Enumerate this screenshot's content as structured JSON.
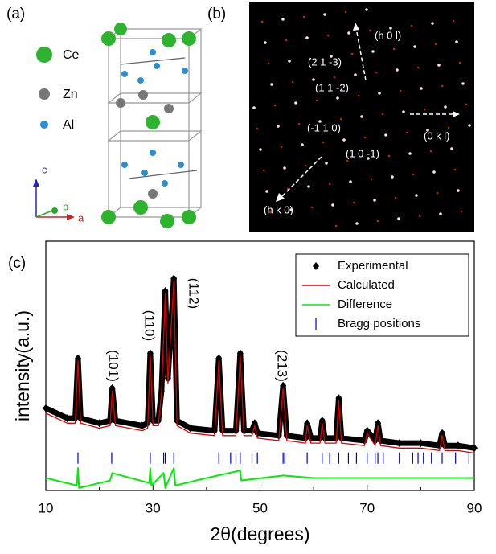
{
  "panel_a": {
    "label": "(a)",
    "legend": [
      "Ce",
      "Zn",
      "Al"
    ],
    "axes": [
      "c",
      "b",
      "a"
    ]
  },
  "panel_b": {
    "label": "(b)",
    "annotations": [
      "(h 0 l)",
      "(2 1 -3)",
      "(1 1 -2)",
      "(0 k l)",
      "(-1 1 0)",
      "(1 0 -1)",
      "(h k 0)"
    ]
  },
  "chart_data": {
    "type": "line",
    "panel_label": "(c)",
    "xlabel": "2θ(degrees)",
    "ylabel": "intensity(a.u.)",
    "xlim": [
      10,
      90
    ],
    "ylim": [
      0,
      100
    ],
    "xticks": [
      10,
      30,
      50,
      70,
      90
    ],
    "xminorticks": [
      20,
      40,
      60,
      80
    ],
    "legend": "upper right",
    "annotations": [
      "(101)",
      "(110)",
      "(112)",
      "(213)"
    ],
    "series": [
      {
        "name": "Experimental",
        "color": "#000000",
        "marker": "diamond",
        "x": [
          10,
          14,
          15.5,
          16,
          16.5,
          20,
          22,
          22.4,
          23,
          28,
          29,
          29.5,
          30,
          31,
          31.6,
          32.3,
          32.8,
          33.9,
          34.5,
          37,
          41.5,
          42.3,
          43,
          45.5,
          46.3,
          47,
          48.5,
          49,
          49.5,
          53.5,
          54.3,
          55,
          58.5,
          58.8,
          59.5,
          61.2,
          61.6,
          62.1,
          64.2,
          64.7,
          65.2,
          69.5,
          70,
          71.5,
          72,
          72.5,
          76,
          80,
          83.5,
          84,
          84.5,
          87,
          90
        ],
        "values": [
          33,
          29,
          29,
          53,
          29,
          27,
          28,
          41,
          28,
          26,
          27,
          55,
          28,
          28,
          40,
          80,
          45,
          85,
          28,
          25,
          24,
          53,
          24,
          24,
          55,
          24,
          24,
          27,
          23,
          22,
          42,
          22,
          21,
          27,
          21,
          21,
          28,
          21,
          21,
          37,
          21,
          20,
          24,
          20,
          27,
          20,
          19,
          19,
          18,
          23,
          18,
          18,
          17
        ]
      },
      {
        "name": "Calculated",
        "color": "#e00000",
        "x": [
          10,
          14,
          15.5,
          16,
          16.5,
          20,
          22,
          22.4,
          23,
          28,
          29,
          29.5,
          30,
          31,
          31.6,
          32.3,
          32.8,
          33.9,
          34.5,
          37,
          41.5,
          42.3,
          43,
          45.5,
          46.3,
          47,
          48.5,
          49,
          49.5,
          53.5,
          54.3,
          55,
          58.5,
          58.8,
          59.5,
          61.2,
          61.6,
          62.1,
          64.2,
          64.7,
          65.2,
          69.5,
          70,
          71.5,
          72,
          72.5,
          76,
          80,
          83.5,
          84,
          84.5,
          87,
          90
        ],
        "values": [
          31,
          27,
          27,
          52,
          27,
          25,
          26,
          40,
          26,
          24,
          25,
          54,
          26,
          26,
          39,
          79,
          43,
          84,
          26,
          23,
          22,
          52,
          22,
          22,
          54,
          22,
          22,
          26,
          21,
          20,
          41,
          20,
          19,
          26,
          19,
          19,
          27,
          19,
          19,
          36,
          19,
          18,
          23,
          18,
          26,
          18,
          17,
          17,
          16,
          22,
          16,
          16,
          15
        ]
      },
      {
        "name": "Difference",
        "color": "#00ee00",
        "x": [
          10,
          15.8,
          16,
          16.2,
          22,
          22.4,
          29.3,
          29.5,
          29.7,
          32,
          32.3,
          33.9,
          34.2,
          40,
          46.3,
          46.5,
          54.3,
          60,
          70,
          80,
          90
        ],
        "values": [
          5,
          2,
          9,
          1,
          4,
          7,
          3,
          9,
          2,
          7,
          1,
          9,
          2,
          5,
          8,
          4,
          6,
          5,
          5,
          5,
          5
        ]
      }
    ],
    "bragg": {
      "name": "Bragg positions",
      "color": "#0000cc",
      "level": 13,
      "x": [
        16,
        22.3,
        29.5,
        32,
        32.3,
        33.9,
        42.3,
        44.5,
        45.5,
        46.3,
        48.5,
        49.5,
        54.3,
        54.6,
        58.8,
        61.6,
        63,
        64.7,
        66.5,
        68,
        70,
        71.5,
        72,
        73,
        76,
        78.5,
        79.5,
        80.5,
        82,
        84,
        86.5,
        89
      ]
    }
  }
}
